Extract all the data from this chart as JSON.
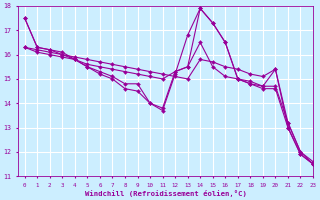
{
  "xlabel": "Windchill (Refroidissement éolien,°C)",
  "xlim": [
    -0.5,
    23
  ],
  "ylim": [
    11,
    18
  ],
  "yticks": [
    11,
    12,
    13,
    14,
    15,
    16,
    17,
    18
  ],
  "xticks": [
    0,
    1,
    2,
    3,
    4,
    5,
    6,
    7,
    8,
    9,
    10,
    11,
    12,
    13,
    14,
    15,
    16,
    17,
    18,
    19,
    20,
    21,
    22,
    23
  ],
  "background_color": "#cceeff",
  "line_color": "#990099",
  "grid_color": "#ffffff",
  "lines": [
    {
      "x": [
        0,
        1,
        2,
        3,
        4,
        5,
        6,
        7,
        8,
        9,
        10,
        11,
        12,
        13,
        14,
        15,
        16,
        17,
        18,
        19,
        20,
        21,
        22,
        23
      ],
      "y": [
        17.5,
        16.3,
        16.2,
        16.1,
        15.8,
        15.5,
        15.3,
        15.1,
        14.8,
        14.8,
        14.0,
        13.8,
        15.3,
        15.5,
        17.9,
        17.3,
        16.5,
        15.0,
        14.9,
        14.7,
        14.7,
        13.2,
        12.0,
        11.6
      ]
    },
    {
      "x": [
        0,
        1,
        2,
        3,
        4,
        5,
        6,
        7,
        8,
        9,
        10,
        11,
        12,
        13,
        14,
        15,
        16,
        17,
        18,
        19,
        20,
        21,
        22,
        23
      ],
      "y": [
        17.5,
        16.3,
        16.2,
        16.0,
        15.8,
        15.5,
        15.2,
        15.0,
        14.6,
        14.5,
        14.0,
        13.7,
        15.2,
        16.8,
        17.9,
        17.3,
        16.5,
        15.0,
        14.8,
        14.6,
        14.6,
        13.0,
        11.9,
        11.5
      ]
    },
    {
      "x": [
        0,
        1,
        2,
        3,
        4,
        5,
        6,
        7,
        8,
        9,
        10,
        11,
        12,
        13,
        14,
        15,
        16,
        17,
        18,
        19,
        20,
        21,
        22,
        23
      ],
      "y": [
        16.3,
        16.2,
        16.1,
        16.0,
        15.9,
        15.8,
        15.7,
        15.6,
        15.5,
        15.4,
        15.3,
        15.2,
        15.1,
        15.0,
        15.8,
        15.7,
        15.5,
        15.4,
        15.2,
        15.1,
        15.4,
        13.2,
        12.0,
        11.5
      ]
    },
    {
      "x": [
        0,
        1,
        2,
        3,
        4,
        5,
        6,
        7,
        8,
        9,
        10,
        11,
        12,
        13,
        14,
        15,
        16,
        17,
        18,
        19,
        20,
        21,
        22,
        23
      ],
      "y": [
        16.3,
        16.1,
        16.0,
        15.9,
        15.8,
        15.6,
        15.5,
        15.4,
        15.3,
        15.2,
        15.1,
        15.0,
        15.3,
        15.5,
        16.5,
        15.5,
        15.1,
        15.0,
        14.8,
        14.7,
        15.4,
        13.0,
        11.9,
        11.5
      ]
    }
  ]
}
